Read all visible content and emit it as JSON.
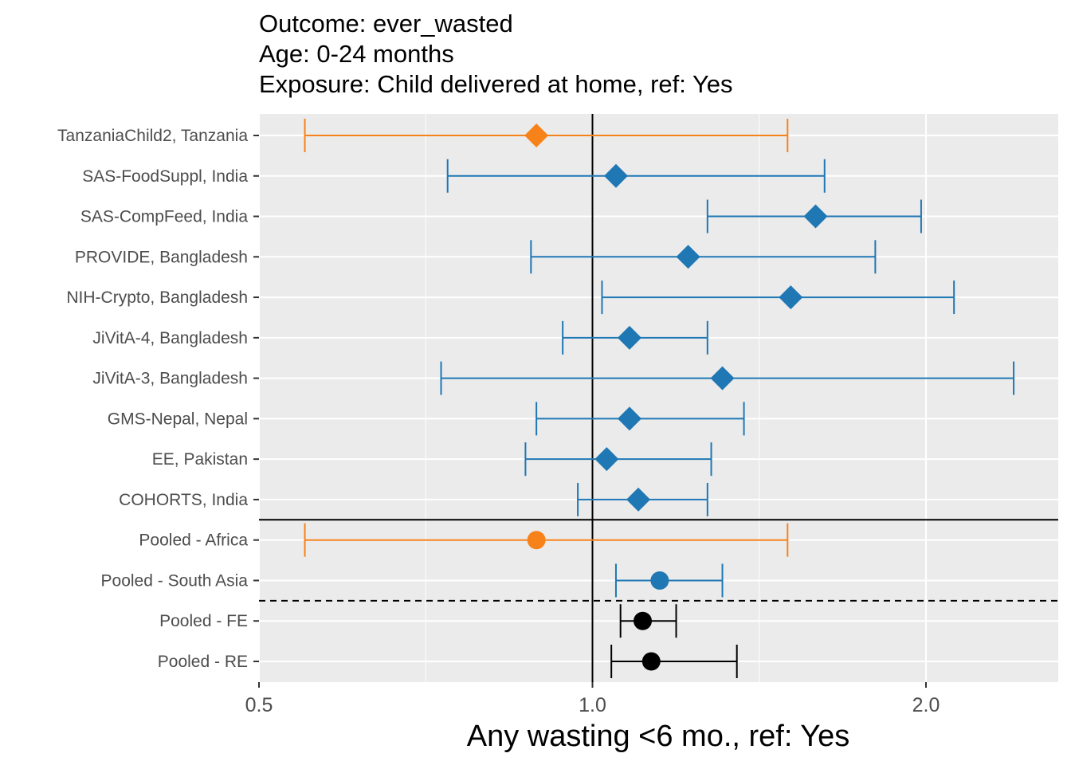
{
  "chart_data": {
    "type": "forest",
    "title_lines": [
      "Outcome: ever_wasted",
      "Age: 0-24 months",
      "Exposure: Child delivered at home, ref: Yes"
    ],
    "xlabel": "Any wasting  <6 mo., ref: Yes",
    "x_scale": "log",
    "xlim": [
      0.5,
      2.6
    ],
    "x_ticks": [
      0.5,
      1.0,
      2.0
    ],
    "x_tick_labels": [
      "0.5",
      "1.0",
      "2.0"
    ],
    "reference_line": 1.0,
    "grid": true,
    "colors": {
      "africa": "#f8821a",
      "south_asia": "#1f77b4",
      "overall": "#000000"
    },
    "rows": [
      {
        "label": "TanzaniaChild2, Tanzania",
        "est": 0.89,
        "lower": 0.55,
        "upper": 1.5,
        "region": "africa",
        "shape": "diamond"
      },
      {
        "label": "SAS-FoodSuppl, India",
        "est": 1.05,
        "lower": 0.74,
        "upper": 1.62,
        "region": "south_asia",
        "shape": "diamond"
      },
      {
        "label": "SAS-CompFeed, India",
        "est": 1.59,
        "lower": 1.27,
        "upper": 1.98,
        "region": "south_asia",
        "shape": "diamond"
      },
      {
        "label": "PROVIDE, Bangladesh",
        "est": 1.22,
        "lower": 0.88,
        "upper": 1.8,
        "region": "south_asia",
        "shape": "diamond"
      },
      {
        "label": "NIH-Crypto, Bangladesh",
        "est": 1.51,
        "lower": 1.02,
        "upper": 2.12,
        "region": "south_asia",
        "shape": "diamond"
      },
      {
        "label": "JiVitA-4, Bangladesh",
        "est": 1.08,
        "lower": 0.94,
        "upper": 1.27,
        "region": "south_asia",
        "shape": "diamond"
      },
      {
        "label": "JiVitA-3, Bangladesh",
        "est": 1.31,
        "lower": 0.73,
        "upper": 2.4,
        "region": "south_asia",
        "shape": "diamond"
      },
      {
        "label": "GMS-Nepal, Nepal",
        "est": 1.08,
        "lower": 0.89,
        "upper": 1.37,
        "region": "south_asia",
        "shape": "diamond"
      },
      {
        "label": "EE, Pakistan",
        "est": 1.03,
        "lower": 0.87,
        "upper": 1.28,
        "region": "south_asia",
        "shape": "diamond"
      },
      {
        "label": "COHORTS, India",
        "est": 1.1,
        "lower": 0.97,
        "upper": 1.27,
        "region": "south_asia",
        "shape": "diamond"
      },
      {
        "label": "Pooled - Africa",
        "est": 0.89,
        "lower": 0.55,
        "upper": 1.5,
        "region": "africa",
        "shape": "circle"
      },
      {
        "label": "Pooled - South Asia",
        "est": 1.15,
        "lower": 1.05,
        "upper": 1.31,
        "region": "south_asia",
        "shape": "circle"
      },
      {
        "label": "Pooled - FE",
        "est": 1.11,
        "lower": 1.06,
        "upper": 1.19,
        "region": "overall",
        "shape": "circle"
      },
      {
        "label": "Pooled - RE",
        "est": 1.13,
        "lower": 1.04,
        "upper": 1.35,
        "region": "overall",
        "shape": "circle"
      }
    ],
    "solid_separator_after_row": 9,
    "dashed_separator_after_row": 11
  }
}
